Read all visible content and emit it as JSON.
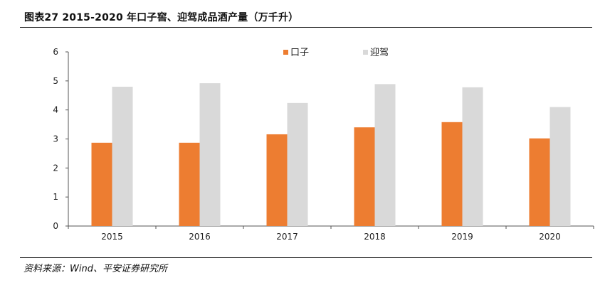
{
  "figure": {
    "title": "图表27    2015-2020 年口子窖、迎驾成品酒产量（万千升）",
    "source": "资料来源：Wind、平安证券研究所"
  },
  "chart_data": {
    "type": "bar",
    "categories": [
      "2015",
      "2016",
      "2017",
      "2018",
      "2019",
      "2020"
    ],
    "series": [
      {
        "name": "口子",
        "color": "#ED7D31",
        "values": [
          2.87,
          2.87,
          3.16,
          3.4,
          3.58,
          3.02
        ]
      },
      {
        "name": "迎驾",
        "color": "#D9D9D9",
        "values": [
          4.8,
          4.92,
          4.24,
          4.89,
          4.78,
          4.1
        ]
      }
    ],
    "ylim": [
      0,
      6
    ],
    "yticks": [
      0,
      1,
      2,
      3,
      4,
      5,
      6
    ],
    "legend": "top",
    "grid": false
  }
}
